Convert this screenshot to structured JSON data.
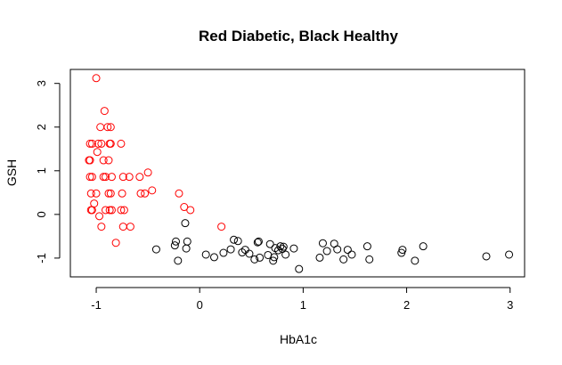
{
  "chart_data": {
    "type": "scatter",
    "title": "Red Diabetic, Black Healthy",
    "xlabel": "HbA1c",
    "ylabel": "GSH",
    "xlim": [
      -1.25,
      3.14
    ],
    "ylim": [
      -1.43,
      3.32
    ],
    "xticks": [
      -1,
      0,
      1,
      2,
      3
    ],
    "yticks": [
      -1,
      0,
      1,
      2,
      3
    ],
    "grid": false,
    "series": [
      {
        "color": "#ff0000",
        "points": [
          [
            -1.0,
            3.12
          ],
          [
            -0.92,
            2.37
          ],
          [
            -0.96,
            2.0
          ],
          [
            -0.89,
            2.0
          ],
          [
            -0.86,
            2.0
          ],
          [
            -1.06,
            1.62
          ],
          [
            -1.04,
            1.62
          ],
          [
            -0.98,
            1.62
          ],
          [
            -0.95,
            1.62
          ],
          [
            -0.87,
            1.62
          ],
          [
            -0.86,
            1.62
          ],
          [
            -0.76,
            1.62
          ],
          [
            -0.99,
            1.43
          ],
          [
            -1.07,
            1.24
          ],
          [
            -1.06,
            1.24
          ],
          [
            -0.93,
            1.24
          ],
          [
            -0.88,
            1.24
          ],
          [
            -0.5,
            0.96
          ],
          [
            -1.06,
            0.86
          ],
          [
            -1.04,
            0.86
          ],
          [
            -0.93,
            0.86
          ],
          [
            -0.91,
            0.86
          ],
          [
            -0.85,
            0.86
          ],
          [
            -0.74,
            0.86
          ],
          [
            -0.68,
            0.86
          ],
          [
            -0.58,
            0.86
          ],
          [
            -0.46,
            0.55
          ],
          [
            -1.05,
            0.48
          ],
          [
            -1.0,
            0.48
          ],
          [
            -0.88,
            0.48
          ],
          [
            -0.86,
            0.48
          ],
          [
            -0.75,
            0.48
          ],
          [
            -0.57,
            0.48
          ],
          [
            -0.53,
            0.48
          ],
          [
            -0.2,
            0.48
          ],
          [
            -1.02,
            0.25
          ],
          [
            -0.15,
            0.17
          ],
          [
            -1.05,
            0.1
          ],
          [
            -1.04,
            0.1
          ],
          [
            -0.91,
            0.1
          ],
          [
            -0.87,
            0.1
          ],
          [
            -0.85,
            0.1
          ],
          [
            -0.76,
            0.1
          ],
          [
            -0.73,
            0.1
          ],
          [
            -0.09,
            0.1
          ],
          [
            -0.97,
            -0.04
          ],
          [
            -0.95,
            -0.28
          ],
          [
            -0.74,
            -0.28
          ],
          [
            -0.67,
            -0.28
          ],
          [
            0.21,
            -0.28
          ],
          [
            -0.81,
            -0.65
          ]
        ]
      },
      {
        "color": "#000000",
        "points": [
          [
            -0.42,
            -0.8
          ],
          [
            -0.24,
            -0.71
          ],
          [
            -0.23,
            -0.62
          ],
          [
            -0.21,
            -1.06
          ],
          [
            -0.14,
            -0.2
          ],
          [
            -0.13,
            -0.78
          ],
          [
            -0.12,
            -0.62
          ],
          [
            0.06,
            -0.92
          ],
          [
            0.14,
            -0.98
          ],
          [
            0.23,
            -0.88
          ],
          [
            0.3,
            -0.8
          ],
          [
            0.33,
            -0.58
          ],
          [
            0.37,
            -0.61
          ],
          [
            0.41,
            -0.87
          ],
          [
            0.44,
            -0.81
          ],
          [
            0.48,
            -0.9
          ],
          [
            0.53,
            -1.03
          ],
          [
            0.56,
            -0.64
          ],
          [
            0.57,
            -0.62
          ],
          [
            0.58,
            -0.99
          ],
          [
            0.66,
            -0.93
          ],
          [
            0.68,
            -0.68
          ],
          [
            0.71,
            -1.06
          ],
          [
            0.72,
            -0.98
          ],
          [
            0.73,
            -0.77
          ],
          [
            0.76,
            -0.82
          ],
          [
            0.78,
            -0.73
          ],
          [
            0.8,
            -0.79
          ],
          [
            0.81,
            -0.74
          ],
          [
            0.83,
            -0.92
          ],
          [
            0.91,
            -0.78
          ],
          [
            0.96,
            -1.25
          ],
          [
            1.16,
            -0.99
          ],
          [
            1.19,
            -0.66
          ],
          [
            1.23,
            -0.84
          ],
          [
            1.3,
            -0.67
          ],
          [
            1.33,
            -0.8
          ],
          [
            1.39,
            -1.03
          ],
          [
            1.43,
            -0.81
          ],
          [
            1.47,
            -0.92
          ],
          [
            1.62,
            -0.73
          ],
          [
            1.64,
            -1.03
          ],
          [
            1.95,
            -0.88
          ],
          [
            1.96,
            -0.81
          ],
          [
            2.08,
            -1.06
          ],
          [
            2.16,
            -0.73
          ],
          [
            2.77,
            -0.96
          ],
          [
            2.99,
            -0.92
          ]
        ]
      }
    ]
  }
}
